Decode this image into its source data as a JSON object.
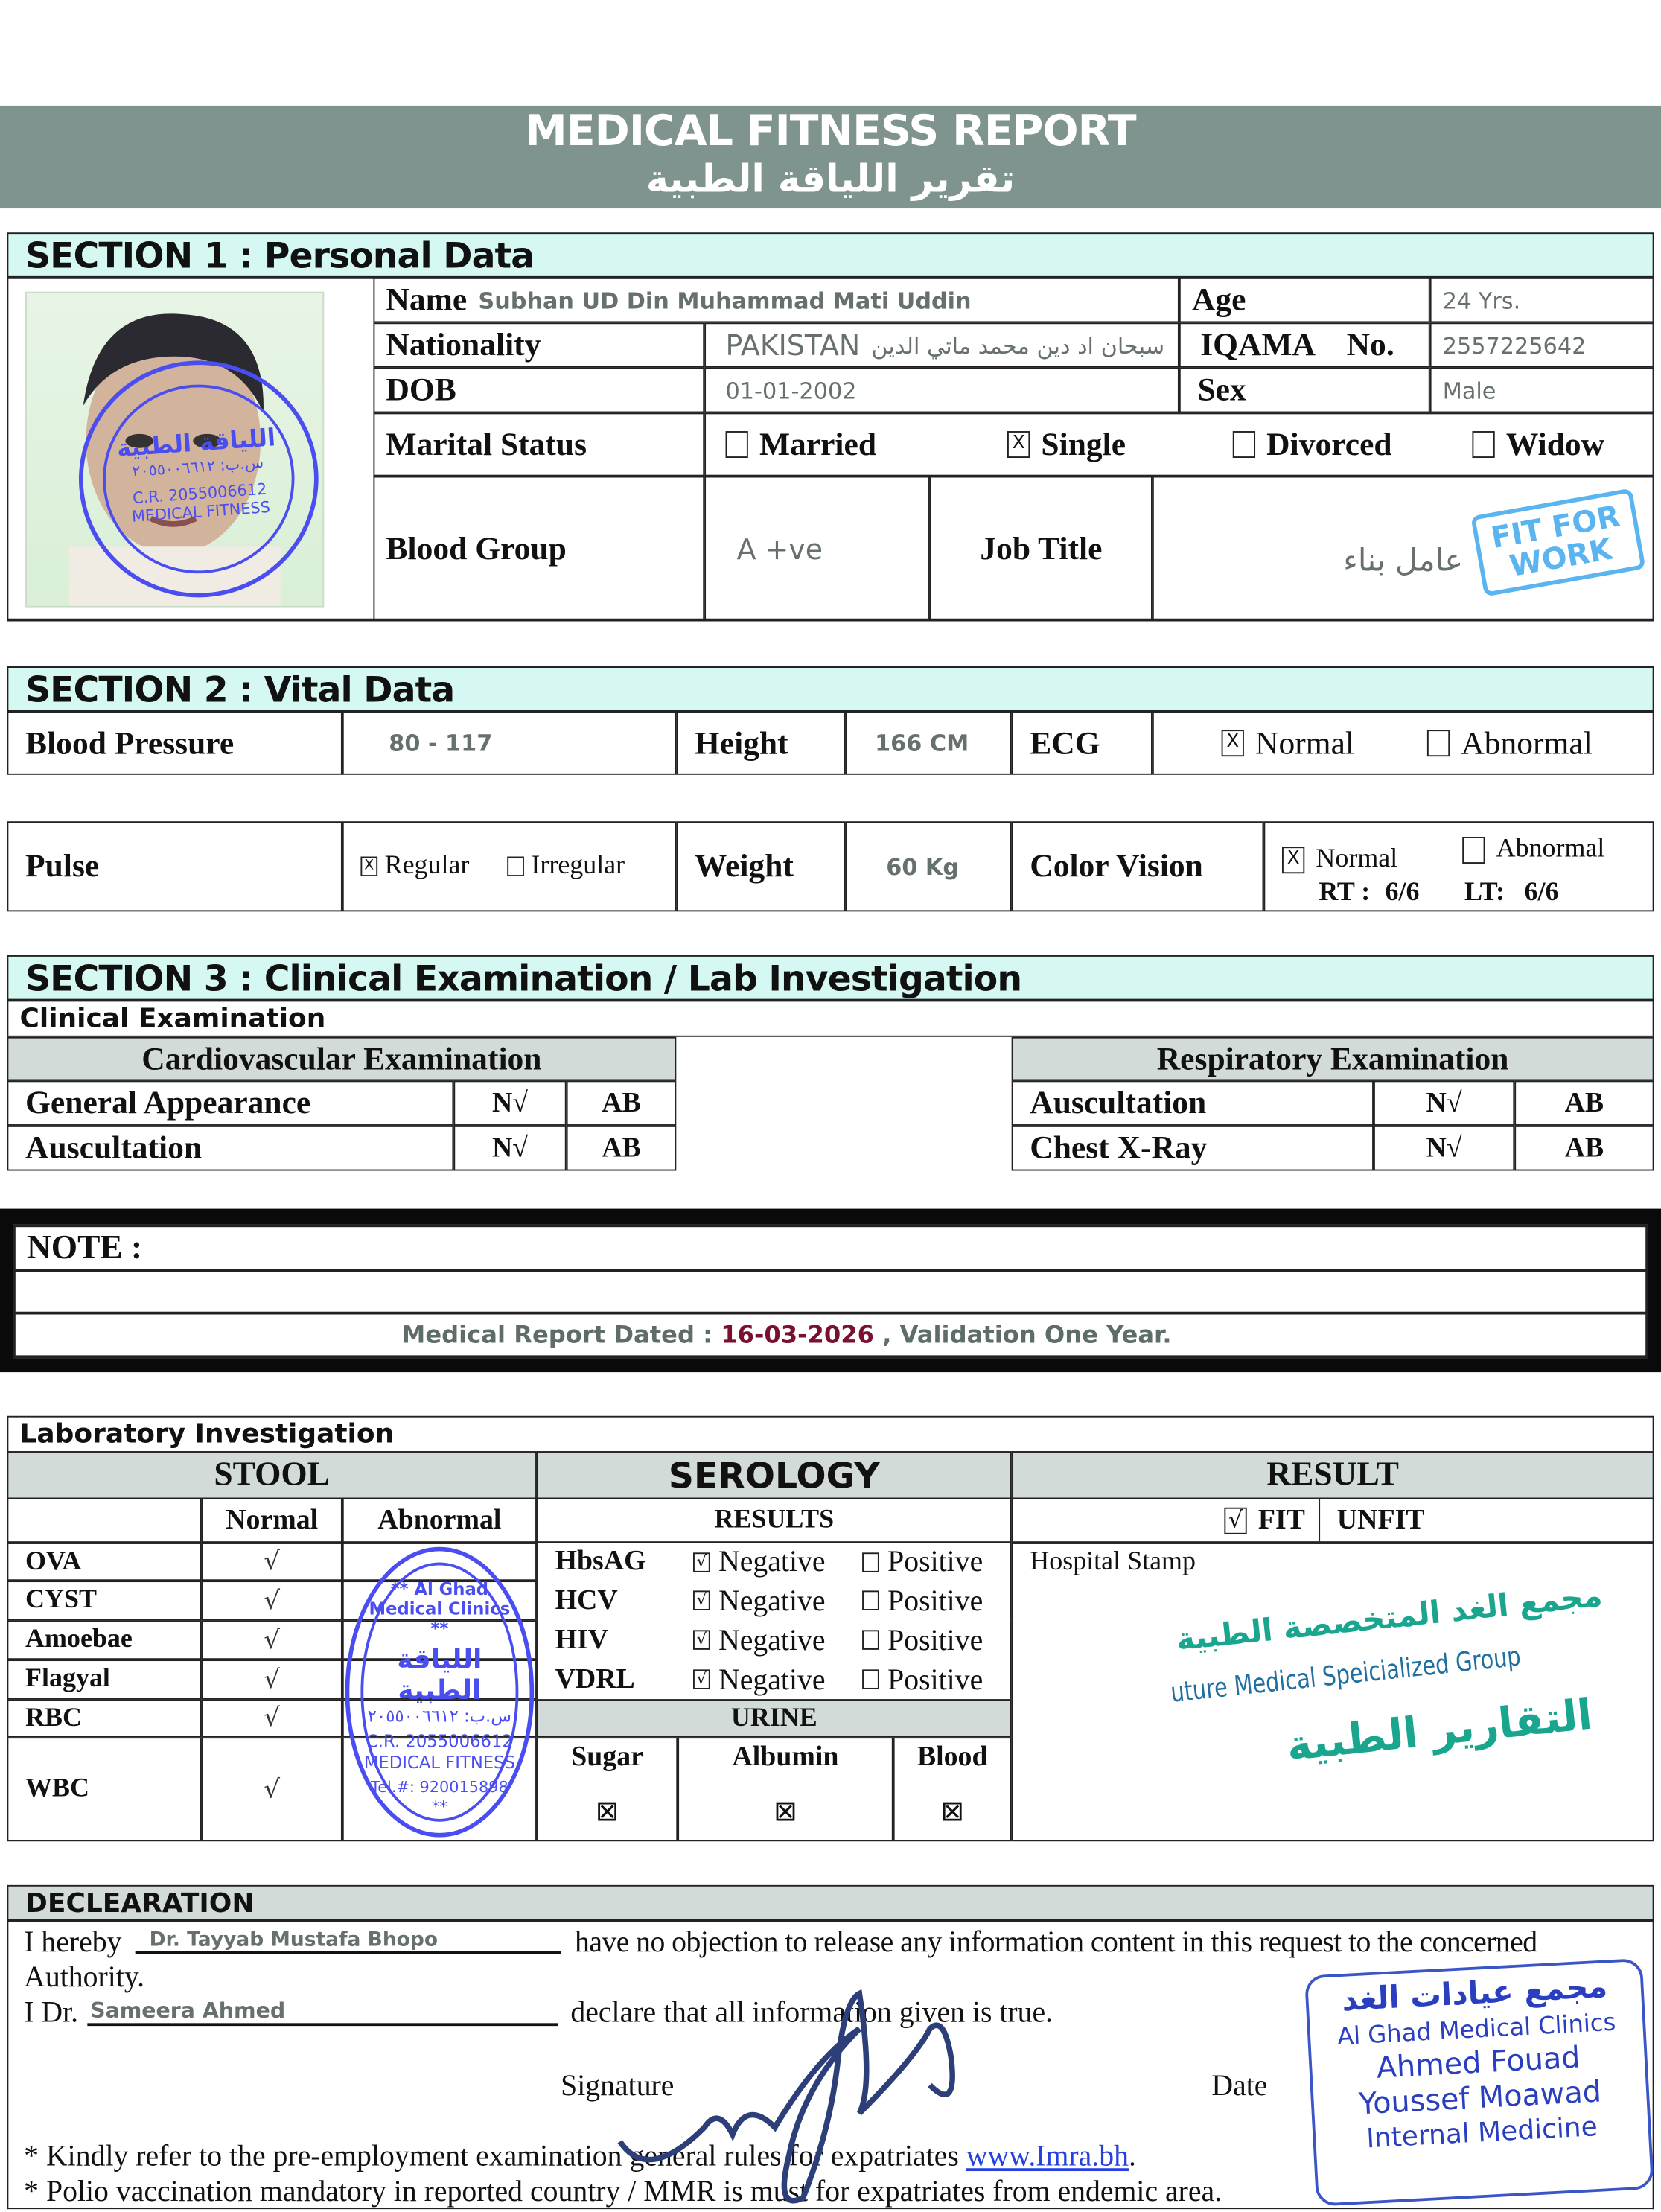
{
  "header": {
    "title_en": "MEDICAL FITNESS REPORT",
    "title_ar": "تقرير اللياقة الطبية",
    "bg": "#7f948f"
  },
  "section1": {
    "title": "SECTION 1 : Personal Data",
    "name_label": "Name",
    "name": "Subhan UD Din Muhammad Mati Uddin",
    "age_label": "Age",
    "age": "24 Yrs.",
    "nationality_label": "Nationality",
    "nationality": "PAKISTAN",
    "name_ar": "سبحان اد دين محمد ماتي الدين",
    "iqama_label": "IQAMA",
    "no_label": "No.",
    "iqama": "2557225642",
    "dob_label": "DOB",
    "dob": "01-01-2002",
    "sex_label": "Sex",
    "sex": "Male",
    "marital_label": "Marital Status",
    "marital_options": [
      {
        "label": "Married",
        "checked": false
      },
      {
        "label": "Single",
        "checked": true
      },
      {
        "label": "Divorced",
        "checked": false
      },
      {
        "label": "Widow",
        "checked": false
      }
    ],
    "blood_label": "Blood Group",
    "blood": "A +ve",
    "job_label": "Job Title",
    "job": "عامل بناء"
  },
  "stamps": {
    "fit_for_work": "FIT FOR WORK",
    "round_stamp_lines": [
      "مجمع عيادات الغد",
      "** Al Ghad Medical Clinics **",
      "اللياقة الطبية",
      "س.ب: ٢٠٥٥٠٠٦٦١٢",
      "C.R. 2055006612",
      "MEDICAL FITNESS",
      "Tel.#: 920015898 **"
    ],
    "hospital_stamp_lines": [
      "مجمع الغد المتخصصة الطبية",
      "uture Medical Speicialized Group",
      "التقارير الطبية"
    ],
    "doctor_stamp_lines": [
      "مجمع عيادات الغد",
      "Al Ghad Medical Clinics",
      "Ahmed Fouad Youssef Moawad",
      "Internal Medicine"
    ],
    "color": "#4a4ef0"
  },
  "section2": {
    "title": "SECTION 2 : Vital Data",
    "bp_label": "Blood Pressure",
    "bp": "80 - 117",
    "height_label": "Height",
    "height": "166 CM",
    "ecg_label": "ECG",
    "ecg_options": [
      {
        "label": "Normal",
        "checked": true
      },
      {
        "label": "Abnormal",
        "checked": false
      }
    ],
    "pulse_label": "Pulse",
    "pulse_options": [
      {
        "label": "Regular",
        "checked": true
      },
      {
        "label": "Irregular",
        "checked": false
      }
    ],
    "weight_label": "Weight",
    "weight": "60 Kg",
    "vision_label": "Color Vision",
    "vision_options": [
      {
        "label": "Normal",
        "checked": true
      },
      {
        "label": "Abnormal",
        "checked": false
      }
    ],
    "rt_label": "RT :",
    "rt": "6/6",
    "lt_label": "LT:",
    "lt": "6/6"
  },
  "section3": {
    "title": "SECTION 3 : Clinical Examination / Lab Investigation",
    "subtitle": "Clinical Examination",
    "cardio": {
      "title": "Cardiovascular Examination",
      "rows": [
        {
          "label": "General Appearance",
          "n": "N√",
          "ab": "AB"
        },
        {
          "label": "Auscultation",
          "n": "N√",
          "ab": "AB"
        }
      ]
    },
    "resp": {
      "title": "Respiratory Examination",
      "rows": [
        {
          "label": "Auscultation",
          "n": "N√",
          "ab": "AB"
        },
        {
          "label": "Chest X-Ray",
          "n": "N√",
          "ab": "AB"
        }
      ]
    }
  },
  "note": {
    "label": "NOTE :",
    "dated_prefix": "Medical Report Dated :",
    "date": "16-03-2026",
    "suffix": ", Validation One Year.",
    "date_color": "#7a1030"
  },
  "lab": {
    "title": "Laboratory Investigation",
    "stool": {
      "title": "STOOL",
      "normal": "Normal",
      "abnormal": "Abnormal",
      "rows": [
        {
          "label": "OVA",
          "normal": "√"
        },
        {
          "label": "CYST",
          "normal": "√"
        },
        {
          "label": "Amoebae",
          "normal": "√"
        },
        {
          "label": "Flagyal",
          "normal": "√"
        },
        {
          "label": "RBC",
          "normal": "√"
        },
        {
          "label": "WBC",
          "normal": "√"
        }
      ]
    },
    "serology": {
      "title": "SEROLOGY",
      "results": "RESULTS",
      "neg": "Negative",
      "pos": "Positive",
      "rows": [
        {
          "label": "HbsAG"
        },
        {
          "label": "HCV"
        },
        {
          "label": "HIV"
        },
        {
          "label": "VDRL"
        }
      ],
      "urine": "URINE",
      "urine_cols": [
        "Sugar",
        "Albumin",
        "Blood"
      ]
    },
    "result": {
      "title": "RESULT",
      "fit": "FIT",
      "fit_mark": "√",
      "unfit": "UNFIT",
      "hospital_stamp": "Hospital Stamp"
    }
  },
  "declaration": {
    "title": "DECLEARATION",
    "hereby": "I hereby",
    "doctor1": "Dr. Tayyab Mustafa Bhopo",
    "text1": "have no objection to release any information content in this request to the concerned",
    "authority": "Authority.",
    "idr": "I Dr.",
    "doctor2": "Sameera Ahmed",
    "text2": "declare that all information given is true.",
    "signature": "Signature",
    "date": "Date",
    "note1": "* Kindly refer to the pre-employment examination general rules for expatriates",
    "link": "www.Imra.bh",
    "note2": "* Polio vaccination mandatory in reported country  / MMR is must for expatriates from endemic area."
  }
}
